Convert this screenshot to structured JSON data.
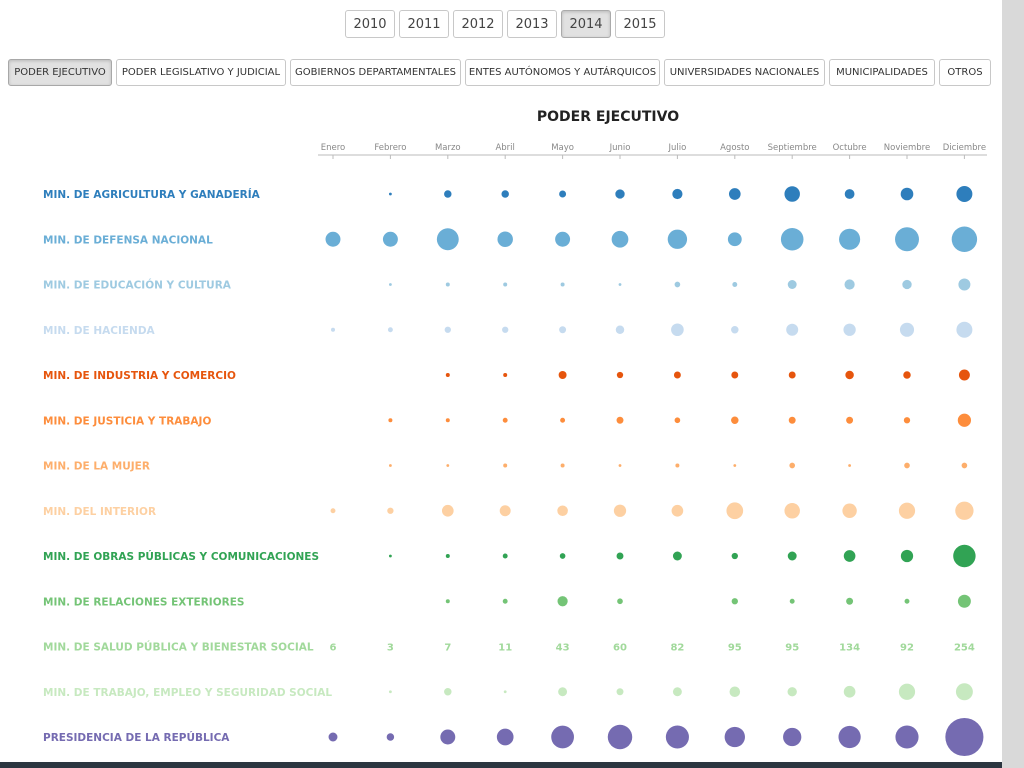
{
  "years": {
    "items": [
      "2010",
      "2011",
      "2012",
      "2013",
      "2014",
      "2015"
    ],
    "selected": "2014"
  },
  "categories": {
    "items": [
      "PODER EJECUTIVO",
      "PODER LEGISLATIVO Y JUDICIAL",
      "GOBIERNOS DEPARTAMENTALES",
      "ENTES AUTÓNOMOS Y AUTÁRQUICOS",
      "UNIVERSIDADES NACIONALES",
      "MUNICIPALIDADES",
      "OTROS"
    ],
    "selected": "PODER EJECUTIVO"
  },
  "chart_data": {
    "type": "scatter",
    "subtype": "bubble-grid",
    "title": "PODER EJECUTIVO",
    "x": [
      "Enero",
      "Febrero",
      "Marzo",
      "Abril",
      "Mayo",
      "Junio",
      "Julio",
      "Agosto",
      "Septiembre",
      "Octubre",
      "Noviembre",
      "Diciembre"
    ],
    "highlighted_row": "MIN. DE SALUD PÚBLICA Y BIENESTAR SOCIAL",
    "series": [
      {
        "name": "MIN. DE AGRICULTURA Y GANADERÍA",
        "color": "#2e7ebc",
        "values": [
          0,
          1,
          7,
          7,
          6,
          11,
          13,
          17,
          30,
          12,
          20,
          32
        ]
      },
      {
        "name": "MIN. DE DEFENSA NACIONAL",
        "color": "#6aaed6",
        "values": [
          28,
          28,
          60,
          30,
          28,
          35,
          47,
          24,
          64,
          56,
          72,
          81
        ]
      },
      {
        "name": "MIN. DE EDUCACIÓN Y CULTURA",
        "color": "#9ecae1",
        "values": [
          0,
          1,
          2,
          2,
          2,
          1,
          4,
          3,
          10,
          13,
          11,
          18
        ]
      },
      {
        "name": "MIN. DE HACIENDA",
        "color": "#c6dbef",
        "values": [
          2,
          3,
          5,
          5,
          6,
          9,
          20,
          7,
          18,
          19,
          25,
          32
        ]
      },
      {
        "name": "MIN. DE INDUSTRIA Y COMERCIO",
        "color": "#e6550d",
        "values": [
          0,
          0,
          2,
          2,
          8,
          5,
          6,
          6,
          6,
          9,
          7,
          15
        ]
      },
      {
        "name": "MIN. DE JUSTICIA Y TRABAJO",
        "color": "#fd8d3c",
        "values": [
          0,
          2,
          2,
          3,
          3,
          6,
          4,
          7,
          6,
          6,
          5,
          22
        ]
      },
      {
        "name": "MIN. DE LA MUJER",
        "color": "#fdae6b",
        "values": [
          0,
          1,
          1,
          2,
          2,
          1,
          2,
          1,
          4,
          1,
          4,
          4
        ]
      },
      {
        "name": "MIN. DEL INTERIOR",
        "color": "#fdd0a2",
        "values": [
          3,
          5,
          17,
          15,
          14,
          19,
          17,
          35,
          30,
          26,
          33,
          42
        ]
      },
      {
        "name": "MIN. DE OBRAS PÚBLICAS Y COMUNICACIONES",
        "color": "#31a354",
        "values": [
          0,
          1,
          2,
          3,
          4,
          6,
          10,
          5,
          10,
          17,
          19,
          63
        ]
      },
      {
        "name": "MIN. DE RELACIONES EXTERIORES",
        "color": "#74c476",
        "values": [
          0,
          0,
          2,
          3,
          13,
          4,
          0,
          5,
          3,
          6,
          3,
          21
        ]
      },
      {
        "name": "MIN. DE SALUD PÚBLICA Y BIENESTAR SOCIAL",
        "color": "#a1d99b",
        "values": [
          6,
          3,
          7,
          11,
          43,
          60,
          82,
          95,
          95,
          134,
          92,
          254
        ]
      },
      {
        "name": "MIN. DE TRABAJO, EMPLEO Y SEGURIDAD SOCIAL",
        "color": "#c7e9c0",
        "values": [
          0,
          1,
          7,
          1,
          10,
          6,
          10,
          14,
          11,
          17,
          33,
          36
        ]
      },
      {
        "name": "PRESIDENCIA DE LA REPÚBLICA",
        "color": "#756bb1",
        "values": [
          10,
          7,
          28,
          35,
          65,
          75,
          67,
          52,
          42,
          62,
          67,
          182
        ]
      }
    ]
  }
}
